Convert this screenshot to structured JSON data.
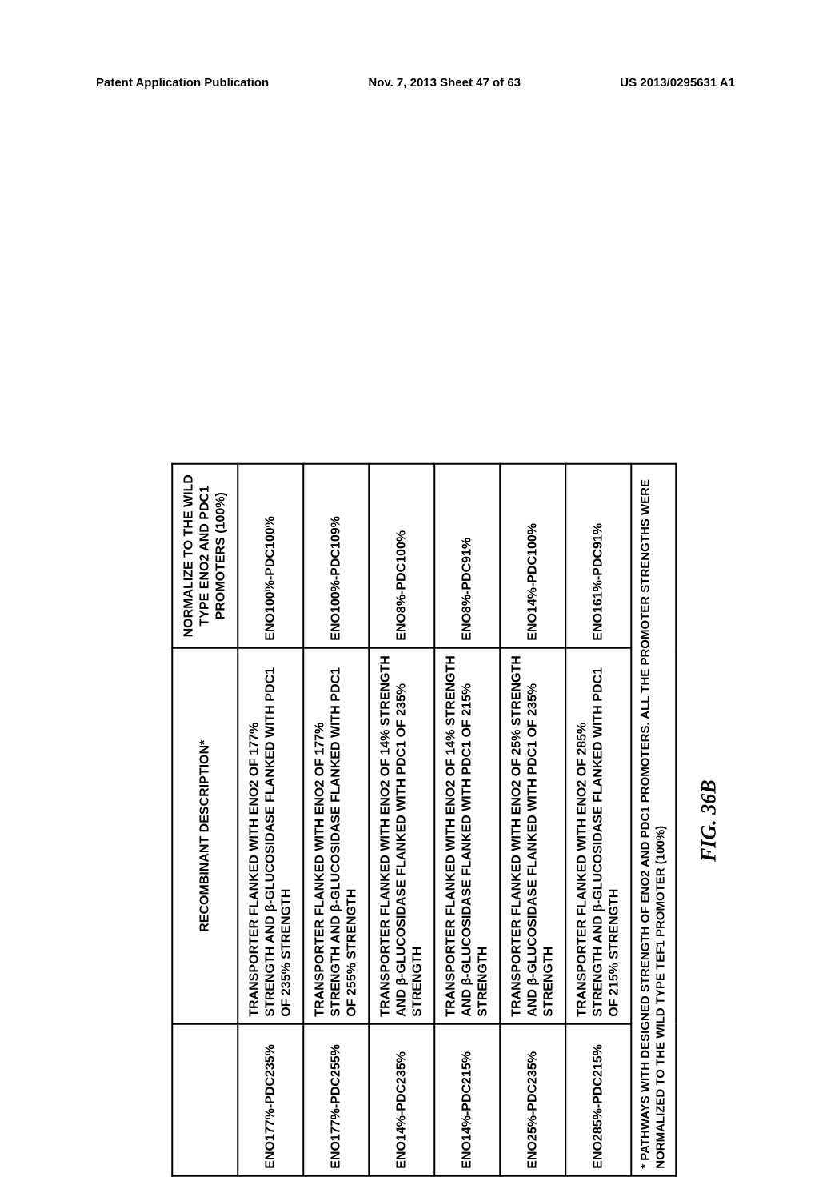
{
  "header": {
    "left": "Patent Application Publication",
    "center": "Nov. 7, 2013  Sheet 47 of 63",
    "right": "US 2013/0295631 A1"
  },
  "table": {
    "columns": {
      "id": "",
      "description": "RECOMBINANT DESCRIPTION*",
      "normalized": "NORMALIZE TO THE WILD TYPE ENO2 AND PDC1 PROMOTERS (100%)"
    },
    "rows": [
      {
        "id": "ENO177%-PDC235%",
        "desc": "TRANSPORTER FLANKED WITH ENO2 OF 177% STRENGTH AND β-GLUCOSIDASE FLANKED WITH PDC1 OF 235% STRENGTH",
        "norm": "ENO100%-PDC100%"
      },
      {
        "id": "ENO177%-PDC255%",
        "desc": "TRANSPORTER FLANKED WITH ENO2 OF 177% STRENGTH AND β-GLUCOSIDASE FLANKED WITH PDC1 OF 255% STRENGTH",
        "norm": "ENO100%-PDC109%"
      },
      {
        "id": "ENO14%-PDC235%",
        "desc": "TRANSPORTER FLANKED WITH ENO2 OF 14% STRENGTH AND β-GLUCOSIDASE FLANKED WITH PDC1 OF 235% STRENGTH",
        "norm": "ENO8%-PDC100%"
      },
      {
        "id": "ENO14%-PDC215%",
        "desc": "TRANSPORTER FLANKED WITH ENO2 OF 14% STRENGTH AND β-GLUCOSIDASE FLANKED WITH PDC1 OF 215% STRENGTH",
        "norm": "ENO8%-PDC91%"
      },
      {
        "id": "ENO25%-PDC235%",
        "desc": "TRANSPORTER FLANKED WITH ENO2 OF 25% STRENGTH AND β-GLUCOSIDASE FLANKED WITH PDC1 OF 235% STRENGTH",
        "norm": "ENO14%-PDC100%"
      },
      {
        "id": "ENO285%-PDC215%",
        "desc": "TRANSPORTER FLANKED WITH ENO2 OF 285% STRENGTH AND β-GLUCOSIDASE FLANKED WITH PDC1 OF 215% STRENGTH",
        "norm": "ENO161%-PDC91%"
      }
    ],
    "footnote": "* PATHWAYS WITH DESIGNED STRENGTH OF ENO2 AND PDC1 PROMOTERS. ALL THE PROMOTER STRENGTHS WERE NORMALIZED TO THE WILD TYPE TEF1 PROMOTER (100%)"
  },
  "figure_caption": "FIG. 36B"
}
